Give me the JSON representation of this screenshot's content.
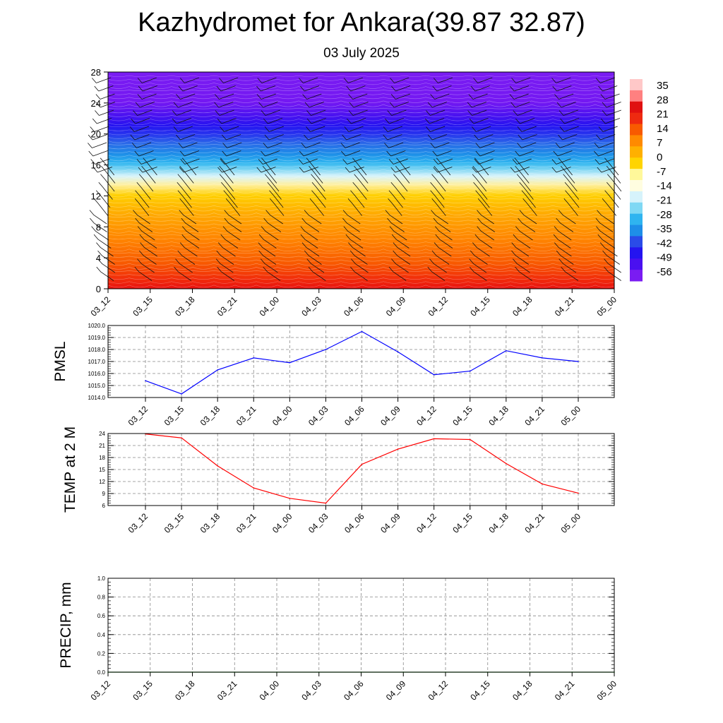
{
  "title": "Kazhydromet for Ankara(39.87 32.87)",
  "subtitle": "03 July 2025",
  "chart_data": [
    {
      "type": "heatmap",
      "description_units": "temperature contours with wind barbs vs height level and time",
      "categories": [
        "03_12",
        "03_15",
        "03_18",
        "03_21",
        "04_00",
        "04_03",
        "04_06",
        "04_09",
        "04_12",
        "04_15",
        "04_18",
        "04_21",
        "05_00"
      ],
      "y_ticks": [
        0,
        4,
        8,
        12,
        16,
        20,
        24,
        28
      ],
      "ylim": [
        0,
        28
      ],
      "colorbar_ticks": [
        35,
        28,
        21,
        14,
        7,
        0,
        -7,
        -14,
        -21,
        -28,
        -35,
        -42,
        -49,
        -56
      ],
      "colorbar_colors": [
        "#ffc8c8",
        "#ff8080",
        "#e01010",
        "#ee2a10",
        "#f85a00",
        "#ff8a00",
        "#ffb000",
        "#ffd400",
        "#fff89a",
        "#fffde0",
        "#d6f3fb",
        "#7fd8f4",
        "#2fb4f0",
        "#1e8ee8",
        "#2a4be8",
        "#2414f0",
        "#4a10f0",
        "#7a1cf2"
      ],
      "xlabel": "",
      "ylabel": ""
    },
    {
      "type": "line",
      "ylabel": "PMSL",
      "categories": [
        "03_12",
        "03_15",
        "03_18",
        "03_21",
        "04_00",
        "04_03",
        "04_06",
        "04_09",
        "04_12",
        "04_15",
        "04_18",
        "04_21",
        "05_00"
      ],
      "values": [
        1015.4,
        1014.3,
        1016.3,
        1017.3,
        1016.9,
        1018.0,
        1019.5,
        1017.8,
        1015.9,
        1016.2,
        1017.9,
        1017.3,
        1017.0
      ],
      "ylim": [
        1014.0,
        1020.0
      ],
      "y_ticks": [
        "1020.0",
        "1019.0",
        "1018.0",
        "1017.0",
        "1016.0",
        "1015.0",
        "1014.0"
      ],
      "line_color": "#0000ff"
    },
    {
      "type": "line",
      "ylabel": "TEMP at 2 M",
      "categories": [
        "03_12",
        "03_15",
        "03_18",
        "03_21",
        "04_00",
        "04_03",
        "04_06",
        "04_09",
        "04_12",
        "04_15",
        "04_18",
        "04_21",
        "05_00"
      ],
      "values": [
        23.9,
        22.9,
        15.9,
        10.4,
        7.8,
        6.6,
        16.3,
        20.1,
        22.7,
        22.5,
        16.5,
        11.4,
        9.1
      ],
      "ylim": [
        6,
        24
      ],
      "y_ticks": [
        "24",
        "21",
        "18",
        "15",
        "12",
        "9",
        "6"
      ],
      "line_color": "#ff0000"
    },
    {
      "type": "line",
      "ylabel": "PRECIP, mm",
      "categories": [
        "03_12",
        "03_15",
        "03_18",
        "03_21",
        "04_00",
        "04_03",
        "04_06",
        "04_09",
        "04_12",
        "04_15",
        "04_18",
        "04_21",
        "05_00"
      ],
      "values": [
        0,
        0,
        0,
        0,
        0,
        0,
        0,
        0,
        0,
        0,
        0,
        0,
        0
      ],
      "ylim": [
        0,
        1.0
      ],
      "y_ticks": [
        "1.0",
        "0.8",
        "0.6",
        "0.4",
        "0.2",
        "0.0"
      ],
      "line_color": "#008000"
    }
  ]
}
